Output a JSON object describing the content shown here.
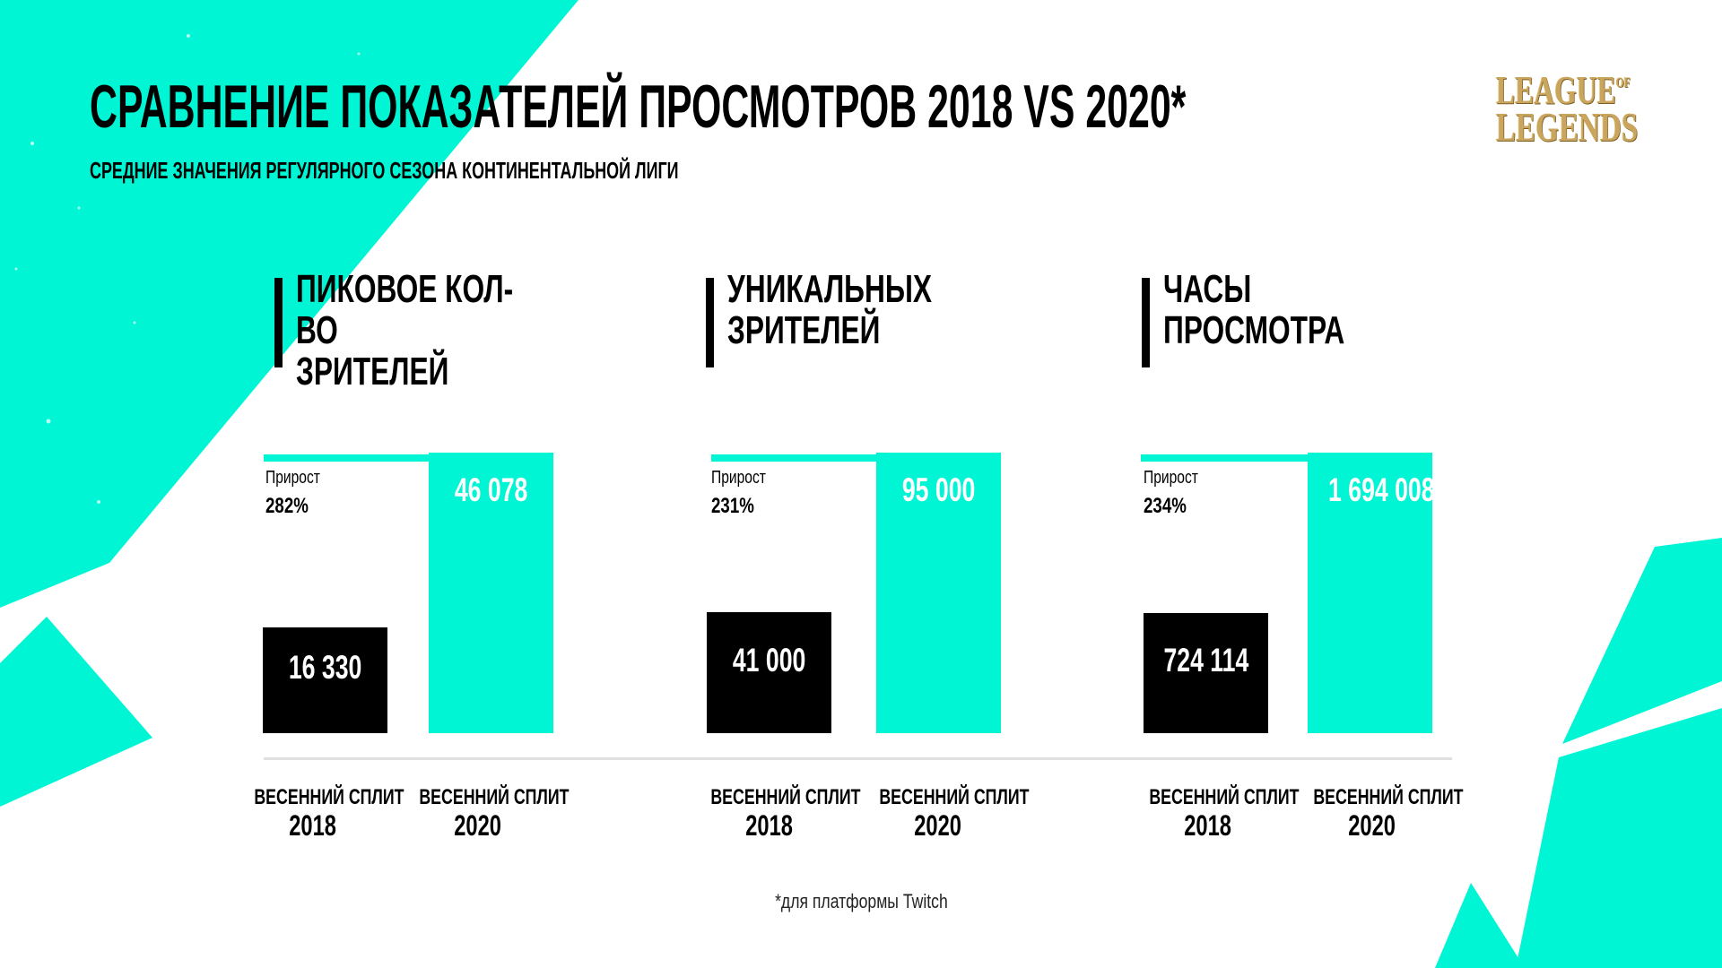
{
  "header": {
    "title": "СРАВНЕНИЕ ПОКАЗАТЕЛЕЙ ПРОСМОТРОВ 2018 VS 2020*",
    "subtitle": "СРЕДНИЕ ЗНАЧЕНИЯ РЕГУЛЯРНОГО СЕЗОНА КОНТИНЕНТАЛЬНОЙ ЛИГИ"
  },
  "logo": {
    "line1": "LEAGUE",
    "of": "OF",
    "line2": "LEGENDS"
  },
  "colors": {
    "accent": "#00f5d4",
    "bar_2018": "#000000",
    "logo_gold": "#c9a55d"
  },
  "chart_data": [
    {
      "type": "bar",
      "title_lines": [
        "ПИКОВОЕ КОЛ-ВО",
        "ЗРИТЕЛЕЙ"
      ],
      "growth_label": "Прирост",
      "growth_value": "282%",
      "categories": [
        {
          "line1": "ВЕСЕННИЙ СПЛИТ",
          "line2": "2018"
        },
        {
          "line1": "ВЕСЕННИЙ СПЛИТ",
          "line2": "2020"
        }
      ],
      "values": [
        16330,
        46078
      ],
      "value_labels": [
        "16 330",
        "46 078"
      ]
    },
    {
      "type": "bar",
      "title_lines": [
        "УНИКАЛЬНЫХ",
        "ЗРИТЕЛЕЙ"
      ],
      "growth_label": "Прирост",
      "growth_value": "231%",
      "categories": [
        {
          "line1": "ВЕСЕННИЙ СПЛИТ",
          "line2": "2018"
        },
        {
          "line1": "ВЕСЕННИЙ СПЛИТ",
          "line2": "2020"
        }
      ],
      "values": [
        41000,
        95000
      ],
      "value_labels": [
        "41 000",
        "95 000"
      ]
    },
    {
      "type": "bar",
      "title_lines": [
        "ЧАСЫ",
        "ПРОСМОТРА"
      ],
      "growth_label": "Прирост",
      "growth_value": "234%",
      "categories": [
        {
          "line1": "ВЕСЕННИЙ СПЛИТ",
          "line2": "2018"
        },
        {
          "line1": "ВЕСЕННИЙ СПЛИТ",
          "line2": "2020"
        }
      ],
      "values": [
        724114,
        1694008
      ],
      "value_labels": [
        "724 114",
        "1 694 008"
      ]
    }
  ],
  "footnote": "*для платформы Twitch"
}
